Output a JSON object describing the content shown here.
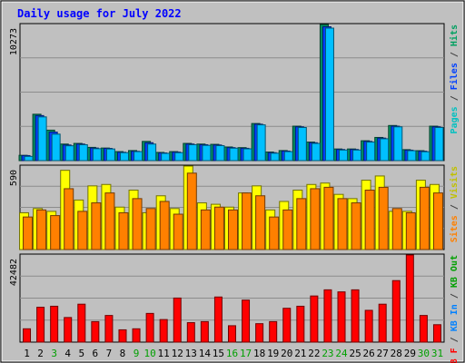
{
  "chart_data": {
    "type": "bar",
    "title": "Daily usage for July 2022",
    "categories": [
      "1",
      "2",
      "3",
      "4",
      "5",
      "6",
      "7",
      "8",
      "9",
      "10",
      "11",
      "12",
      "13",
      "14",
      "15",
      "16",
      "17",
      "18",
      "19",
      "20",
      "21",
      "22",
      "23",
      "24",
      "25",
      "26",
      "27",
      "28",
      "29",
      "30",
      "31"
    ],
    "weekend_days": [
      "3",
      "9",
      "10",
      "16",
      "17",
      "23",
      "24",
      "30",
      "31"
    ],
    "panels": [
      {
        "id": "pages-files-hits",
        "max_label": "10273",
        "ylim": [
          0,
          10273
        ],
        "axis_title_parts": [
          {
            "text": "Pages",
            "color": "#00c0c0"
          },
          {
            "text": " / ",
            "color": "#404040"
          },
          {
            "text": "Files",
            "color": "#0040ff"
          },
          {
            "text": " / ",
            "color": "#404040"
          },
          {
            "text": "Hits",
            "color": "#00a060"
          }
        ],
        "series": [
          {
            "name": "Hits",
            "color": "#009060",
            "values": [
              400,
              3500,
              2300,
              1250,
              1300,
              1000,
              950,
              680,
              760,
              1450,
              620,
              680,
              1300,
              1250,
              1230,
              1030,
              980,
              2800,
              650,
              760,
              2600,
              1400,
              10273,
              880,
              880,
              1500,
              1750,
              2650,
              830,
              750,
              2600
            ]
          },
          {
            "name": "Files",
            "color": "#0040ff",
            "values": [
              380,
              3400,
              2150,
              1180,
              1250,
              950,
              920,
              630,
              700,
              1350,
              580,
              640,
              1250,
              1200,
              1180,
              980,
              930,
              2750,
              600,
              720,
              2550,
              1350,
              10100,
              840,
              840,
              1450,
              1700,
              2600,
              790,
              710,
              2550
            ]
          },
          {
            "name": "Pages",
            "color": "#00c0ff",
            "values": [
              320,
              3300,
              2000,
              1120,
              1200,
              900,
              880,
              600,
              680,
              1250,
              550,
              600,
              1200,
              1150,
              1130,
              940,
              890,
              2700,
              560,
              680,
              2500,
              1300,
              10000,
              800,
              800,
              1400,
              1650,
              2550,
              750,
              670,
              2500
            ]
          }
        ]
      },
      {
        "id": "visits-sites",
        "max_label": "590",
        "ylim": [
          0,
          590
        ],
        "axis_title_parts": [
          {
            "text": "Sites",
            "color": "#ff8000"
          },
          {
            "text": " / ",
            "color": "#404040"
          },
          {
            "text": "Visits",
            "color": "#c0c000"
          }
        ],
        "series": [
          {
            "name": "Visits",
            "color": "#ffff00",
            "values": [
              260,
              290,
              270,
              560,
              350,
              450,
              460,
              300,
              420,
              260,
              380,
              290,
              590,
              330,
              320,
              300,
              400,
              450,
              280,
              340,
              420,
              460,
              470,
              390,
              360,
              490,
              520,
              270,
              270,
              490,
              460
            ]
          },
          {
            "name": "Sites",
            "color": "#ff8000",
            "values": [
              230,
              280,
              240,
              430,
              270,
              330,
              400,
              260,
              360,
              290,
              340,
              250,
              540,
              280,
              300,
              280,
              400,
              380,
              230,
              280,
              360,
              430,
              440,
              360,
              330,
              420,
              440,
              290,
              260,
              440,
              400
            ]
          }
        ]
      },
      {
        "id": "kbytes",
        "max_label": "42482",
        "ylim": [
          0,
          42482
        ],
        "axis_title_parts": [
          {
            "text": "KB F",
            "color": "#ff0000"
          },
          {
            "text": " / ",
            "color": "#404040"
          },
          {
            "text": "KB In",
            "color": "#0080ff"
          },
          {
            "text": " / ",
            "color": "#404040"
          },
          {
            "text": "KB Out",
            "color": "#00a000"
          }
        ],
        "series": [
          {
            "name": "KB F",
            "color": "#ff0000",
            "values": [
              6500,
              17000,
              17500,
              12000,
              18500,
              10000,
              13000,
              6000,
              6500,
              14000,
              11000,
              21500,
              9500,
              10000,
              22000,
              8000,
              20500,
              9000,
              10000,
              16500,
              17500,
              22500,
              25500,
              24500,
              25500,
              15500,
              18500,
              30000,
              42482,
              13000,
              8500
            ]
          }
        ]
      }
    ]
  }
}
